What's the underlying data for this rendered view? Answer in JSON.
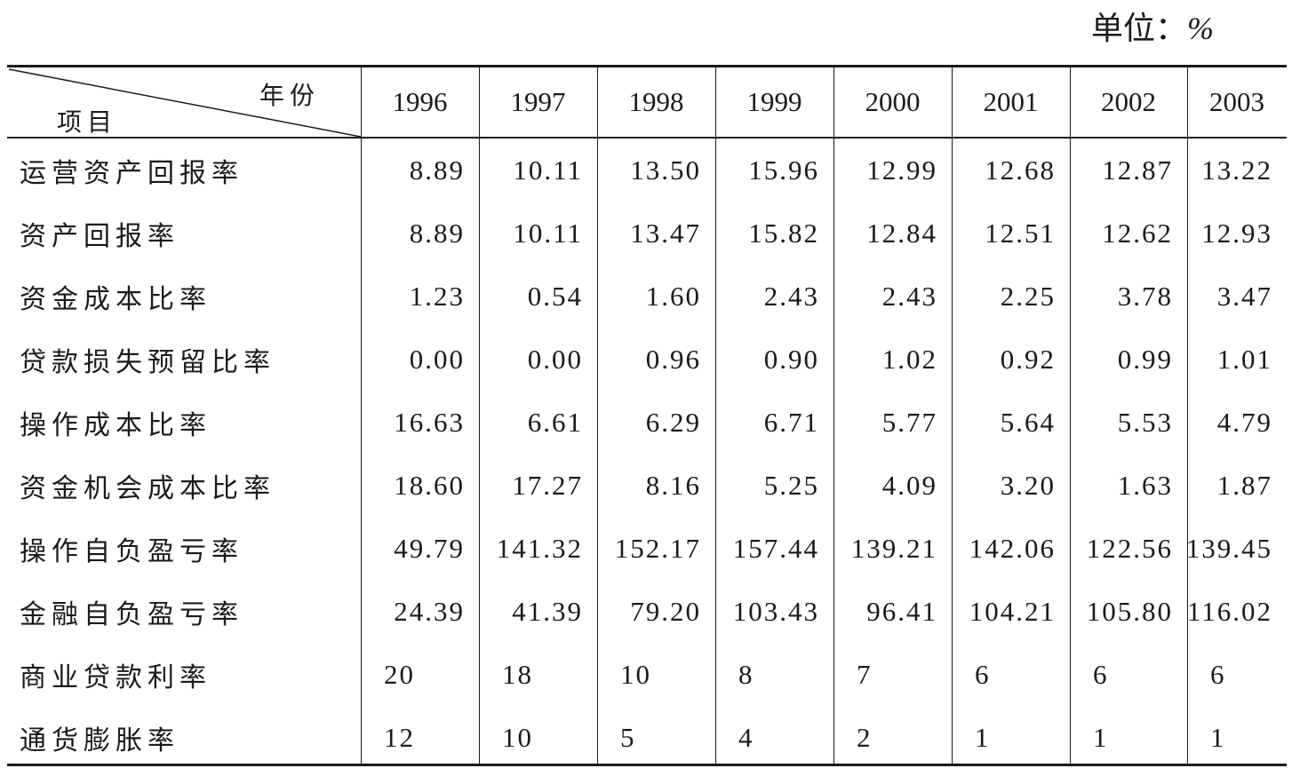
{
  "unit_label": "单位：",
  "unit_symbol": "%",
  "table": {
    "corner_column_label": "年份",
    "corner_row_label": "项目",
    "years": [
      "1996",
      "1997",
      "1998",
      "1999",
      "2000",
      "2001",
      "2002",
      "2003"
    ],
    "rows": [
      {
        "label": "运营资产回报率",
        "values": [
          "8.89",
          "10.11",
          "13.50",
          "15.96",
          "12.99",
          "12.68",
          "12.87",
          "13.22"
        ]
      },
      {
        "label": "资产回报率",
        "values": [
          "8.89",
          "10.11",
          "13.47",
          "15.82",
          "12.84",
          "12.51",
          "12.62",
          "12.93"
        ]
      },
      {
        "label": "资金成本比率",
        "values": [
          "1.23",
          "0.54",
          "1.60",
          "2.43",
          "2.43",
          "2.25",
          "3.78",
          "3.47"
        ]
      },
      {
        "label": "贷款损失预留比率",
        "values": [
          "0.00",
          "0.00",
          "0.96",
          "0.90",
          "1.02",
          "0.92",
          "0.99",
          "1.01"
        ]
      },
      {
        "label": "操作成本比率",
        "values": [
          "16.63",
          "6.61",
          "6.29",
          "6.71",
          "5.77",
          "5.64",
          "5.53",
          "4.79"
        ]
      },
      {
        "label": "资金机会成本比率",
        "values": [
          "18.60",
          "17.27",
          "8.16",
          "5.25",
          "4.09",
          "3.20",
          "1.63",
          "1.87"
        ]
      },
      {
        "label": "操作自负盈亏率",
        "values": [
          "49.79",
          "141.32",
          "152.17",
          "157.44",
          "139.21",
          "142.06",
          "122.56",
          "139.45"
        ]
      },
      {
        "label": "金融自负盈亏率",
        "values": [
          "24.39",
          "41.39",
          "79.20",
          "103.43",
          "96.41",
          "104.21",
          "105.80",
          "116.02"
        ]
      },
      {
        "label": "商业贷款利率",
        "values": [
          "20",
          "18",
          "10",
          "8",
          "7",
          "6",
          "6",
          "6"
        ]
      },
      {
        "label": "通货膨胀率",
        "values": [
          "12",
          "10",
          "5",
          "4",
          "2",
          "1",
          "1",
          "1"
        ]
      }
    ]
  }
}
